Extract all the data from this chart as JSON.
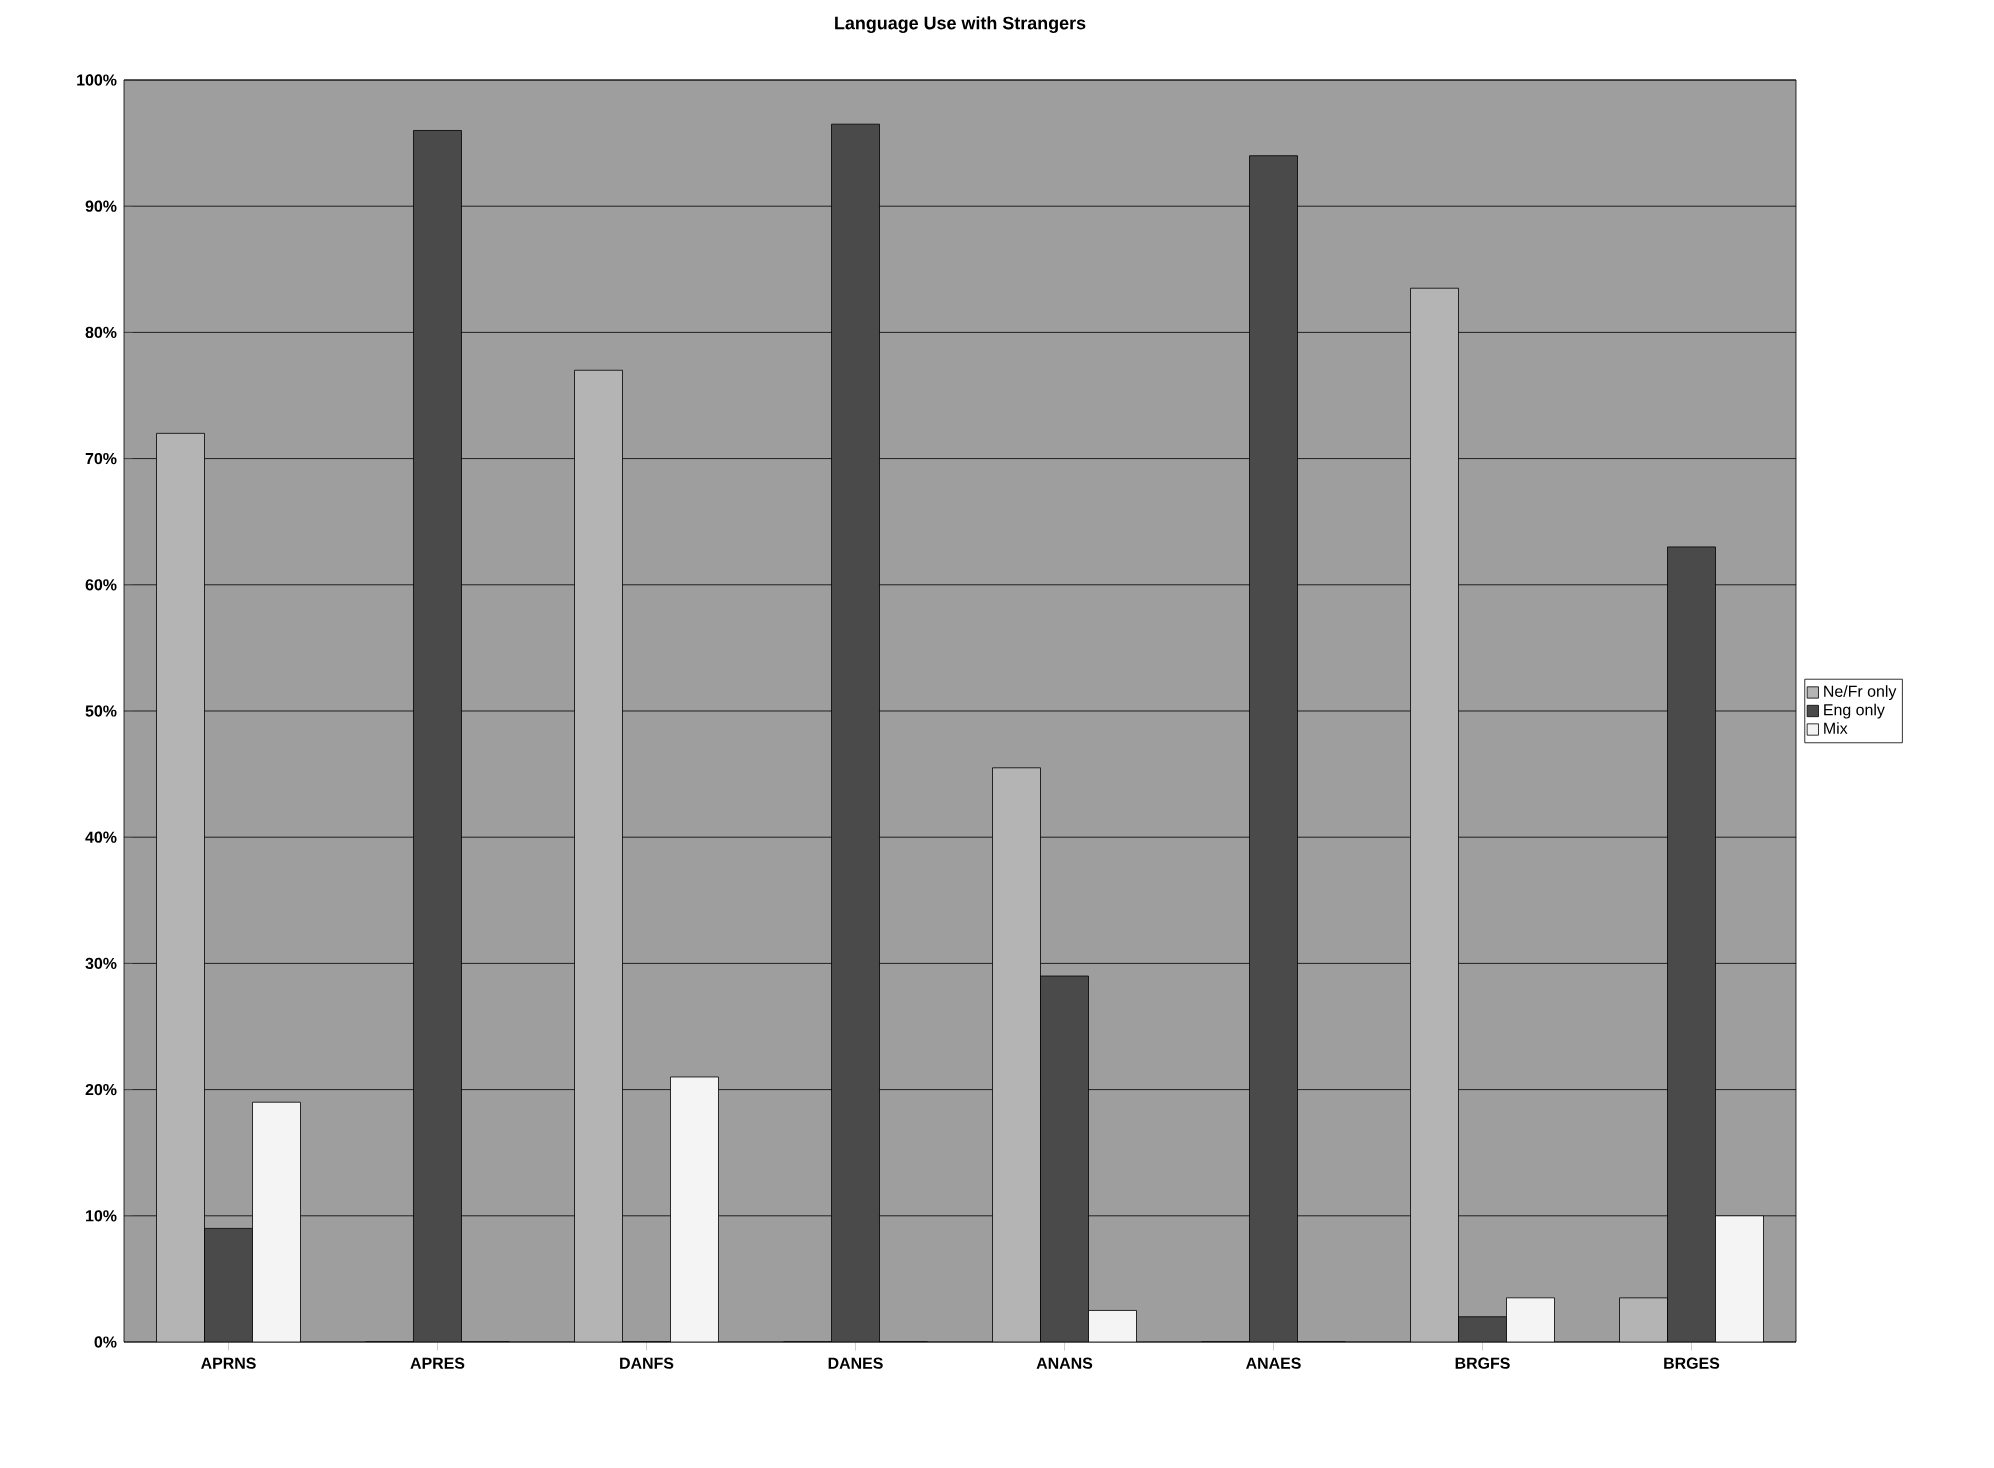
{
  "chart_data": {
    "type": "bar",
    "title": "Language Use with Strangers",
    "categories": [
      "APRNS",
      "APRES",
      "DANFS",
      "DANES",
      "ANANS",
      "ANAES",
      "BRGFS",
      "BRGES"
    ],
    "series": [
      {
        "name": "Ne/Fr only",
        "color": "#b4b4b4",
        "values": [
          72,
          0,
          77,
          0,
          45.5,
          0,
          83.5,
          3.5
        ]
      },
      {
        "name": "Eng only",
        "color": "#4a4a4a",
        "values": [
          9,
          96,
          0,
          96.5,
          29,
          94,
          2,
          63
        ]
      },
      {
        "name": "Mix",
        "color": "#f4f4f4",
        "values": [
          19,
          0,
          21,
          0,
          2.5,
          0,
          3.5,
          10
        ]
      }
    ],
    "ylim": [
      0,
      100
    ],
    "yticks": [
      {
        "value": 0,
        "label": "0%"
      },
      {
        "value": 10,
        "label": "10%"
      },
      {
        "value": 20,
        "label": "20%"
      },
      {
        "value": 30,
        "label": "30%"
      },
      {
        "value": 40,
        "label": "40%"
      },
      {
        "value": 50,
        "label": "50%"
      },
      {
        "value": 60,
        "label": "60%"
      },
      {
        "value": 70,
        "label": "70%"
      },
      {
        "value": 80,
        "label": "80%"
      },
      {
        "value": 90,
        "label": "90%"
      },
      {
        "value": 100,
        "label": "100%"
      }
    ],
    "grid": "y",
    "legend": "right"
  }
}
